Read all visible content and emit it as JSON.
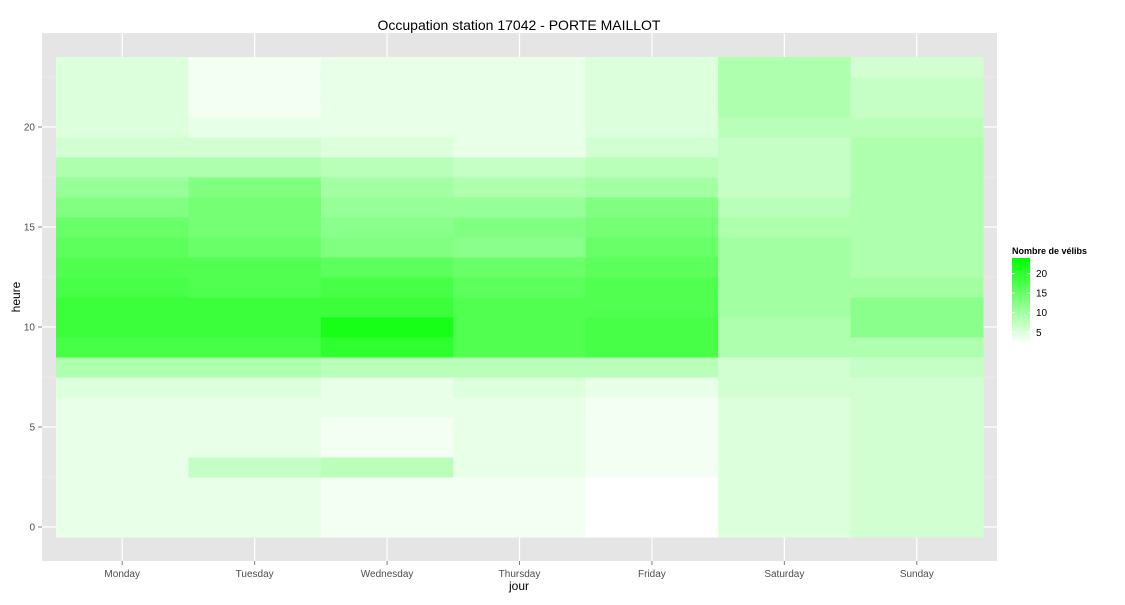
{
  "chart_data": {
    "type": "heatmap",
    "title": "Occupation station 17042 - PORTE MAILLOT",
    "xlabel": "jour",
    "ylabel": "heure",
    "categories": [
      "Monday",
      "Tuesday",
      "Wednesday",
      "Thursday",
      "Friday",
      "Saturday",
      "Sunday"
    ],
    "y_hours": [
      0,
      1,
      2,
      3,
      4,
      5,
      6,
      7,
      8,
      9,
      10,
      11,
      12,
      13,
      14,
      15,
      16,
      17,
      18,
      19,
      20,
      21,
      22,
      23
    ],
    "y_ticks": [
      0,
      5,
      10,
      15,
      20
    ],
    "ylim": [
      -0.5,
      23.5
    ],
    "grid": true,
    "legend": {
      "title": "Nombre de vélibs",
      "position": "right",
      "ticks": [
        5,
        10,
        15,
        20
      ],
      "range": [
        2,
        24
      ],
      "low_color": "#ffffff",
      "high_color": "#00ff00"
    },
    "values": [
      [
        4,
        4,
        4,
        4,
        4,
        4,
        4,
        5,
        9,
        18,
        19,
        19,
        18,
        17,
        16,
        15,
        13,
        11,
        9,
        6,
        5,
        5,
        5,
        5
      ],
      [
        4,
        4,
        4,
        7,
        4,
        4,
        4,
        5,
        9,
        18,
        19,
        19,
        17,
        17,
        15,
        14,
        14,
        13,
        9,
        6,
        4,
        3,
        3,
        3
      ],
      [
        3,
        3,
        3,
        8,
        3,
        3,
        4,
        4,
        8,
        20,
        22,
        19,
        18,
        16,
        13,
        12,
        11,
        10,
        8,
        5,
        4,
        4,
        4,
        4
      ],
      [
        3,
        3,
        3,
        4,
        4,
        4,
        4,
        5,
        8,
        17,
        17,
        17,
        16,
        15,
        12,
        13,
        11,
        9,
        7,
        4,
        4,
        4,
        4,
        4
      ],
      [
        2,
        2,
        2,
        3,
        3,
        3,
        3,
        4,
        8,
        18,
        18,
        17,
        17,
        16,
        15,
        14,
        13,
        10,
        8,
        6,
        5,
        5,
        5,
        5
      ],
      [
        5,
        5,
        5,
        5,
        5,
        5,
        5,
        6,
        6,
        9,
        9,
        10,
        10,
        10,
        10,
        9,
        8,
        7,
        7,
        7,
        8,
        9,
        9,
        9
      ],
      [
        6,
        6,
        6,
        6,
        6,
        6,
        6,
        6,
        7,
        9,
        12,
        12,
        10,
        9,
        9,
        9,
        9,
        9,
        9,
        9,
        8,
        7,
        7,
        6
      ]
    ]
  }
}
